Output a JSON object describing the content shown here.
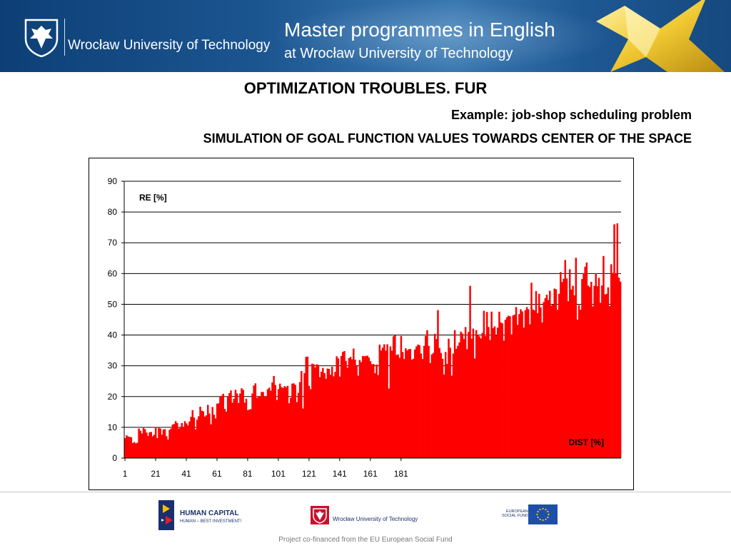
{
  "header": {
    "university": "Wrocław University of Technology",
    "title_line1": "Master programmes in English",
    "title_line2": "at Wrocław University of Technology"
  },
  "slide": {
    "title": "OPTIMIZATION TROUBLES. FUR",
    "subtitle": "Example: job-shop scheduling problem",
    "heading": "SIMULATION OF GOAL FUNCTION VALUES TOWARDS CENTER OF THE SPACE"
  },
  "chart_data": {
    "type": "bar",
    "title": "",
    "ylabel": "RE [%]",
    "xlabel": "DIST [%]",
    "ylim": [
      0,
      90
    ],
    "yticks": [
      0,
      10,
      20,
      30,
      40,
      50,
      60,
      70,
      80,
      90
    ],
    "xticks": [
      1,
      21,
      41,
      61,
      81,
      101,
      121,
      141,
      161,
      181
    ],
    "x_start": 1,
    "grid": "horizontal",
    "bar_color": "#ff0000",
    "values": [
      6.5,
      7.4,
      7.0,
      6.9,
      6.8,
      4.9,
      5.2,
      4.8,
      5.0,
      9.6,
      8.9,
      8.0,
      9.8,
      9.4,
      8.3,
      7.2,
      8.4,
      8.5,
      7.1,
      7.6,
      10.1,
      6.5,
      9.8,
      9.6,
      7.6,
      9.3,
      9.4,
      7.1,
      6.0,
      9.2,
      9.6,
      10.9,
      11.1,
      12.0,
      11.4,
      9.6,
      10.0,
      11.4,
      9.9,
      12.0,
      11.3,
      10.6,
      11.9,
      13.4,
      15.6,
      13.2,
      9.3,
      12.5,
      13.6,
      16.7,
      15.4,
      15.2,
      13.5,
      13.9,
      17.3,
      14.5,
      11.0,
      16.6,
      14.1,
      12.9,
      17.7,
      17.8,
      20.1,
      20.3,
      20.9,
      16.0,
      15.1,
      20.1,
      21.1,
      22.0,
      18.0,
      19.3,
      22.2,
      21.0,
      17.9,
      21.0,
      22.7,
      22.2,
      18.0,
      19.3,
      15.6,
      15.8,
      15.9,
      21.0,
      23.6,
      24.3,
      19.6,
      20.2,
      20.0,
      21.5,
      21.5,
      20.1,
      19.9,
      22.4,
      22.9,
      21.9,
      24.6,
      26.7,
      23.8,
      18.9,
      22.4,
      24.2,
      23.1,
      22.8,
      23.4,
      23.0,
      23.5,
      17.8,
      19.6,
      24.2,
      24.3,
      23.8,
      18.2,
      21.2,
      24.7,
      28.3,
      16.1,
      27.6,
      32.9,
      33.0,
      23.5,
      22.4,
      30.7,
      30.5,
      29.5,
      30.5,
      30.3,
      26.3,
      28.1,
      29.3,
      27.6,
      25.8,
      29.1,
      29.0,
      27.1,
      29.7,
      26.6,
      28.0,
      33.1,
      32.4,
      26.5,
      33.2,
      34.5,
      34.8,
      31.6,
      29.4,
      32.5,
      32.9,
      32.1,
      35.6,
      32.0,
      29.9,
      26.8,
      31.9,
      31.2,
      33.2,
      33.1,
      33.2,
      33.3,
      32.7,
      31.5,
      30.5,
      30.6,
      27.6,
      30.4,
      27.0,
      36.9,
      35.0,
      35.9,
      37.0,
      34.9,
      37.0,
      22.6,
      36.3,
      34.9,
      39.6,
      39.9,
      33.5,
      33.7,
      32.6,
      39.7,
      34.5,
      32.2,
      35.7,
      35.0,
      35.4,
      35.5,
      32.0,
      32.3,
      35.3,
      36.3,
      36.9,
      36.7,
      34.0,
      32.2,
      36.5,
      39.7,
      41.6,
      36.5,
      30.9,
      33.7,
      34.2,
      40.4,
      38.7,
      48.1,
      35.8,
      34.2,
      32.3,
      27.2,
      34.5,
      30.6,
      38.8,
      35.9,
      26.8,
      34.0,
      41.6,
      35.5,
      36.5,
      37.6,
      41.1,
      40.5,
      38.7,
      42.6,
      35.4,
      41.0,
      56.0,
      38.8,
      42.1,
      32.4,
      41.6,
      39.9,
      39.6,
      38.9,
      40.7,
      47.9,
      39.7,
      47.5,
      42.6,
      38.4,
      47.6,
      42.3,
      42.8,
      39.9,
      42.4,
      47.6,
      44.1,
      43.8,
      38.2,
      45.0,
      45.8,
      46.3,
      46.1,
      40.2,
      46.4,
      46.6,
      49.1,
      43.3,
      46.8,
      48.4,
      47.7,
      42.4,
      48.1,
      49.1,
      48.4,
      43.5,
      57.0,
      48.3,
      48.0,
      54.3,
      47.1,
      53.4,
      49.0,
      44.1,
      50.7,
      52.0,
      53.1,
      51.4,
      54.4,
      49.6,
      49.9,
      55.1,
      54.9,
      48.2,
      53.4,
      60.5,
      57.2,
      58.3,
      64.4,
      58.4,
      51.0,
      61.4,
      54.8,
      56.0,
      52.9,
      65.1,
      45.0,
      49.7,
      48.2,
      58.2,
      60.1,
      62.2,
      63.6,
      56.1,
      55.6,
      57.3,
      49.3,
      56.0,
      60.1,
      55.9,
      58.6,
      50.5,
      56.1,
      65.7,
      53.2,
      53.4,
      55.5,
      49.4,
      63.0,
      60.2,
      76.0,
      59.9,
      76.3,
      58.7,
      57.4
    ]
  },
  "footer": {
    "hc_name": "HUMAN CAPITAL",
    "hc_tag": "HUMAN – BEST INVESTMENT!",
    "wut_small": "Wrocław University of Technology",
    "esf_line1": "EUROPEAN",
    "esf_line2": "SOCIAL FUND",
    "note": "Project co-financed from the EU European Social Fund"
  }
}
